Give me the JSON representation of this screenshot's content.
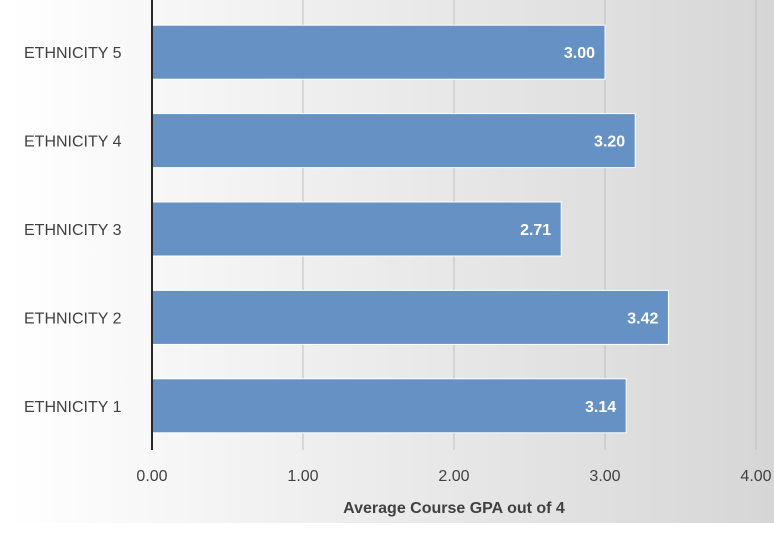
{
  "chart_data": {
    "type": "bar",
    "orientation": "horizontal",
    "categories": [
      "ETHNICITY 1",
      "ETHNICITY 2",
      "ETHNICITY 3",
      "ETHNICITY 4",
      "ETHNICITY 5"
    ],
    "values": [
      3.14,
      3.42,
      2.71,
      3.2,
      3.0
    ],
    "value_labels": [
      "3.14",
      "3.42",
      "2.71",
      "3.20",
      "3.00"
    ],
    "x_ticks": [
      "0.00",
      "1.00",
      "2.00",
      "3.00",
      "4.00"
    ],
    "xlim": [
      0,
      4
    ],
    "xlabel": "Average Course GPA out of 4",
    "ylabel": "",
    "title": "",
    "grid": true,
    "legend": "none",
    "colors": {
      "bar": "#6591C5",
      "bar_edge": "#FFFFFF",
      "label": "#404040",
      "value_label": "#FFFFFF",
      "gridline": "#BFBFBF",
      "background_light": "#FFFFFF",
      "background_dark": "#D6D6D6"
    }
  }
}
